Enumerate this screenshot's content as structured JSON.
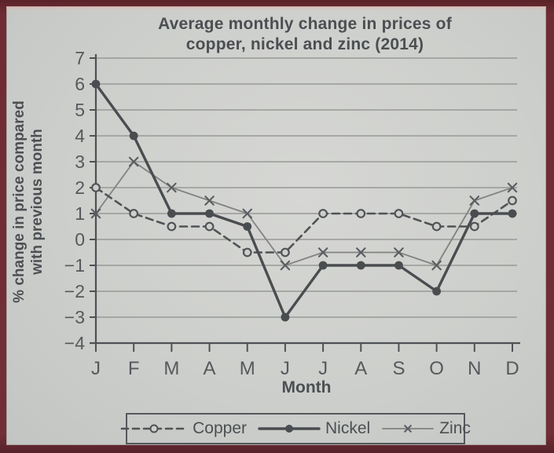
{
  "page": {
    "title_line1": "Average monthly change in prices of",
    "title_line2": "copper, nickel and zinc (2014)"
  },
  "chart_data": {
    "type": "line",
    "title": "Average monthly change in prices of copper, nickel and zinc (2014)",
    "xlabel": "Month",
    "ylabel": "% change in price compared with previous month",
    "ylabel_line1": "% change in price compared",
    "ylabel_line2": "with previous month",
    "categories": [
      "J",
      "F",
      "M",
      "A",
      "M",
      "J",
      "J",
      "A",
      "S",
      "O",
      "N",
      "D"
    ],
    "yticks": [
      7,
      6,
      5,
      4,
      3,
      2,
      1,
      0,
      -1,
      -2,
      -3,
      -4
    ],
    "ylim": [
      -4,
      7
    ],
    "grid": true,
    "legend_position": "bottom",
    "series": [
      {
        "name": "Copper",
        "line": "dashed",
        "marker": "open-circle",
        "values": [
          2,
          1,
          0.5,
          0.5,
          -0.5,
          -0.5,
          1,
          1,
          1,
          0.5,
          0.5,
          1.5
        ]
      },
      {
        "name": "Nickel",
        "line": "solid-thick",
        "marker": "filled-circle",
        "values": [
          6,
          4,
          1,
          1,
          0.5,
          -3,
          -1,
          -1,
          -1,
          -2,
          1,
          1
        ]
      },
      {
        "name": "Zinc",
        "line": "solid-thin",
        "marker": "x-cross",
        "values": [
          1,
          3,
          2,
          1.5,
          1,
          -1,
          -0.5,
          -0.5,
          -0.5,
          -1,
          1.5,
          2
        ]
      }
    ]
  },
  "legend": {
    "items": [
      {
        "label": "Copper"
      },
      {
        "label": "Nickel"
      },
      {
        "label": "Zinc"
      }
    ]
  },
  "colors": {
    "frame": "#6f2c34",
    "background": "#cdcfcc",
    "grid": "#979996",
    "axis": "#4e5154",
    "text": "#56595c",
    "copper": "#505356",
    "nickel": "#4a4d50",
    "zinc": "#80837f",
    "zinc_marker": "#5a5d60"
  }
}
